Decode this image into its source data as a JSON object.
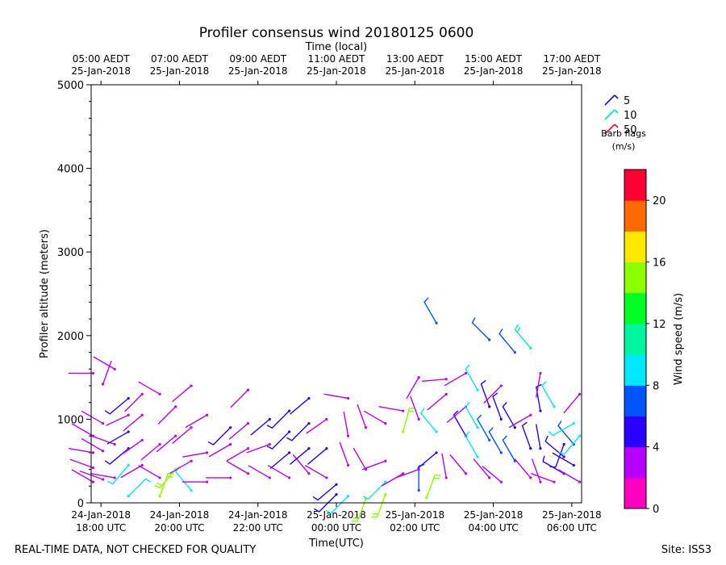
{
  "chart_data": {
    "type": "scatter",
    "subtype": "wind-barb",
    "title": "Profiler consensus wind 20180125 0600",
    "xlabel": "Time(UTC)",
    "x2label": "Time (local)",
    "ylabel": "Profiler altitude (meters)",
    "ylim": [
      0,
      5000
    ],
    "yticks": [
      0,
      1000,
      2000,
      3000,
      4000,
      5000
    ],
    "xlim_hours": [
      17.75,
      30.25
    ],
    "xticks": [
      {
        "h": 18,
        "line1": "24-Jan-2018",
        "line2": "18:00 UTC"
      },
      {
        "h": 20,
        "line1": "24-Jan-2018",
        "line2": "20:00 UTC"
      },
      {
        "h": 22,
        "line1": "24-Jan-2018",
        "line2": "22:00 UTC"
      },
      {
        "h": 24,
        "line1": "25-Jan-2018",
        "line2": "00:00 UTC"
      },
      {
        "h": 26,
        "line1": "25-Jan-2018",
        "line2": "02:00 UTC"
      },
      {
        "h": 28,
        "line1": "25-Jan-2018",
        "line2": "04:00 UTC"
      },
      {
        "h": 30,
        "line1": "25-Jan-2018",
        "line2": "06:00 UTC"
      }
    ],
    "x2ticks": [
      {
        "h": 18,
        "line1": "05:00 AEDT",
        "line2": "25-Jan-2018"
      },
      {
        "h": 20,
        "line1": "07:00 AEDT",
        "line2": "25-Jan-2018"
      },
      {
        "h": 22,
        "line1": "09:00 AEDT",
        "line2": "25-Jan-2018"
      },
      {
        "h": 24,
        "line1": "11:00 AEDT",
        "line2": "25-Jan-2018"
      },
      {
        "h": 26,
        "line1": "13:00 AEDT",
        "line2": "25-Jan-2018"
      },
      {
        "h": 28,
        "line1": "15:00 AEDT",
        "line2": "25-Jan-2018"
      },
      {
        "h": 30,
        "line1": "17:00 AEDT",
        "line2": "25-Jan-2018"
      }
    ],
    "barb_legend": {
      "entries": [
        {
          "label": "5",
          "color": "#1a00e0"
        },
        {
          "label": "10",
          "color": "#00e8a0"
        },
        {
          "label": "50",
          "color": "#ff0040"
        }
      ],
      "title": "Barb flags",
      "units": "(m/s)",
      "placement": "top-right"
    },
    "colorbar": {
      "label": "Wind speed (m/s)",
      "range": [
        0,
        22
      ],
      "ticks": [
        0,
        4,
        8,
        12,
        16,
        20
      ],
      "colors": [
        "#ff00c0",
        "#b800ff",
        "#2a00ff",
        "#0055ff",
        "#00e8ff",
        "#00f5a0",
        "#00ff22",
        "#8cff00",
        "#ffe800",
        "#ff6a00",
        "#ff0035"
      ]
    },
    "barbs": [
      {
        "t": 17.8,
        "alt": 250,
        "dir": 300,
        "spd": 2
      },
      {
        "t": 17.8,
        "alt": 420,
        "dir": 290,
        "spd": 3
      },
      {
        "t": 17.8,
        "alt": 600,
        "dir": 280,
        "spd": 2.5
      },
      {
        "t": 17.8,
        "alt": 800,
        "dir": 300,
        "spd": 3
      },
      {
        "t": 17.8,
        "alt": 1550,
        "dir": 270,
        "spd": 2
      },
      {
        "t": 18.05,
        "alt": 280,
        "dir": 290,
        "spd": 2
      },
      {
        "t": 18.05,
        "alt": 620,
        "dir": 300,
        "spd": 3
      },
      {
        "t": 18.05,
        "alt": 950,
        "dir": 300,
        "spd": 3
      },
      {
        "t": 18.05,
        "alt": 1420,
        "dir": 20,
        "spd": 2
      },
      {
        "t": 18.35,
        "alt": 300,
        "dir": 280,
        "spd": 2
      },
      {
        "t": 18.35,
        "alt": 700,
        "dir": 290,
        "spd": 3
      },
      {
        "t": 18.35,
        "alt": 1600,
        "dir": 300,
        "spd": 2
      },
      {
        "t": 18.7,
        "alt": 80,
        "dir": 45,
        "spd": 9
      },
      {
        "t": 18.7,
        "alt": 450,
        "dir": 220,
        "spd": 9
      },
      {
        "t": 18.7,
        "alt": 650,
        "dir": 230,
        "spd": 5
      },
      {
        "t": 18.7,
        "alt": 850,
        "dir": 240,
        "spd": 4
      },
      {
        "t": 18.7,
        "alt": 1050,
        "dir": 245,
        "spd": 3.5
      },
      {
        "t": 18.7,
        "alt": 1250,
        "dir": 230,
        "spd": 5
      },
      {
        "t": 19.05,
        "alt": 450,
        "dir": 240,
        "spd": 3
      },
      {
        "t": 19.05,
        "alt": 750,
        "dir": 235,
        "spd": 3
      },
      {
        "t": 19.05,
        "alt": 1050,
        "dir": 230,
        "spd": 3
      },
      {
        "t": 19.05,
        "alt": 1300,
        "dir": 225,
        "spd": 3.5
      },
      {
        "t": 19.5,
        "alt": 80,
        "dir": 20,
        "spd": 15
      },
      {
        "t": 19.5,
        "alt": 300,
        "dir": 300,
        "spd": 2
      },
      {
        "t": 19.5,
        "alt": 700,
        "dir": 230,
        "spd": 3
      },
      {
        "t": 19.5,
        "alt": 1300,
        "dir": 300,
        "spd": 2
      },
      {
        "t": 19.9,
        "alt": 400,
        "dir": 220,
        "spd": 14
      },
      {
        "t": 19.9,
        "alt": 800,
        "dir": 230,
        "spd": 3
      },
      {
        "t": 19.9,
        "alt": 1150,
        "dir": 225,
        "spd": 3
      },
      {
        "t": 20.3,
        "alt": 150,
        "dir": 320,
        "spd": 9
      },
      {
        "t": 20.3,
        "alt": 500,
        "dir": 240,
        "spd": 3
      },
      {
        "t": 20.3,
        "alt": 900,
        "dir": 230,
        "spd": 3
      },
      {
        "t": 20.3,
        "alt": 1400,
        "dir": 230,
        "spd": 2
      },
      {
        "t": 20.7,
        "alt": 250,
        "dir": 270,
        "spd": 2
      },
      {
        "t": 20.7,
        "alt": 600,
        "dir": 260,
        "spd": 2
      },
      {
        "t": 20.7,
        "alt": 1050,
        "dir": 240,
        "spd": 2
      },
      {
        "t": 21.3,
        "alt": 300,
        "dir": 270,
        "spd": 2
      },
      {
        "t": 21.3,
        "alt": 700,
        "dir": 240,
        "spd": 3
      },
      {
        "t": 21.3,
        "alt": 900,
        "dir": 225,
        "spd": 5
      },
      {
        "t": 21.75,
        "alt": 350,
        "dir": 300,
        "spd": 2
      },
      {
        "t": 21.75,
        "alt": 650,
        "dir": 240,
        "spd": 3
      },
      {
        "t": 21.75,
        "alt": 950,
        "dir": 230,
        "spd": 3
      },
      {
        "t": 21.75,
        "alt": 1350,
        "dir": 225,
        "spd": 2
      },
      {
        "t": 22.3,
        "alt": 300,
        "dir": 300,
        "spd": 2
      },
      {
        "t": 22.3,
        "alt": 700,
        "dir": 250,
        "spd": 3
      },
      {
        "t": 22.3,
        "alt": 1000,
        "dir": 230,
        "spd": 4
      },
      {
        "t": 22.8,
        "alt": 300,
        "dir": 300,
        "spd": 2
      },
      {
        "t": 22.8,
        "alt": 600,
        "dir": 230,
        "spd": 4
      },
      {
        "t": 22.8,
        "alt": 850,
        "dir": 225,
        "spd": 5
      },
      {
        "t": 22.8,
        "alt": 1100,
        "dir": 225,
        "spd": 5
      },
      {
        "t": 23.3,
        "alt": 350,
        "dir": 320,
        "spd": 2
      },
      {
        "t": 23.3,
        "alt": 650,
        "dir": 230,
        "spd": 4
      },
      {
        "t": 23.3,
        "alt": 950,
        "dir": 225,
        "spd": 5
      },
      {
        "t": 23.3,
        "alt": 1250,
        "dir": 230,
        "spd": 4
      },
      {
        "t": 23.75,
        "alt": 300,
        "dir": 300,
        "spd": 2
      },
      {
        "t": 23.75,
        "alt": 650,
        "dir": 230,
        "spd": 4
      },
      {
        "t": 23.75,
        "alt": 1000,
        "dir": 235,
        "spd": 3
      },
      {
        "t": 24.0,
        "alt": 100,
        "dir": 225,
        "spd": 5
      },
      {
        "t": 24.0,
        "alt": 220,
        "dir": 230,
        "spd": 5
      },
      {
        "t": 24.3,
        "alt": 80,
        "dir": 225,
        "spd": 9
      },
      {
        "t": 24.3,
        "alt": 450,
        "dir": 340,
        "spd": 2
      },
      {
        "t": 24.3,
        "alt": 800,
        "dir": 350,
        "spd": 2
      },
      {
        "t": 24.3,
        "alt": 1250,
        "dir": 280,
        "spd": 2
      },
      {
        "t": 24.75,
        "alt": 50,
        "dir": 200,
        "spd": 14
      },
      {
        "t": 24.75,
        "alt": 400,
        "dir": 330,
        "spd": 2
      },
      {
        "t": 24.75,
        "alt": 900,
        "dir": 340,
        "spd": 2
      },
      {
        "t": 25.25,
        "alt": 100,
        "dir": 200,
        "spd": 14
      },
      {
        "t": 25.25,
        "alt": 250,
        "dir": 225,
        "spd": 9
      },
      {
        "t": 25.25,
        "alt": 500,
        "dir": 250,
        "spd": 2
      },
      {
        "t": 25.25,
        "alt": 950,
        "dir": 300,
        "spd": 2
      },
      {
        "t": 25.7,
        "alt": 350,
        "dir": 240,
        "spd": 3
      },
      {
        "t": 25.7,
        "alt": 850,
        "dir": 15,
        "spd": 14
      },
      {
        "t": 25.7,
        "alt": 1100,
        "dir": 280,
        "spd": 2
      },
      {
        "t": 26.1,
        "alt": 150,
        "dir": 0,
        "spd": 6
      },
      {
        "t": 26.1,
        "alt": 400,
        "dir": 250,
        "spd": 2
      },
      {
        "t": 26.1,
        "alt": 1000,
        "dir": 340,
        "spd": 2
      },
      {
        "t": 26.1,
        "alt": 1500,
        "dir": 210,
        "spd": 2
      },
      {
        "t": 26.3,
        "alt": 60,
        "dir": 20,
        "spd": 14
      },
      {
        "t": 26.55,
        "alt": 600,
        "dir": 230,
        "spd": 4
      },
      {
        "t": 26.55,
        "alt": 850,
        "dir": 320,
        "spd": 9
      },
      {
        "t": 26.55,
        "alt": 2150,
        "dir": 330,
        "spd": 6
      },
      {
        "t": 26.8,
        "alt": 300,
        "dir": 350,
        "spd": 2
      },
      {
        "t": 26.8,
        "alt": 1300,
        "dir": 230,
        "spd": 3
      },
      {
        "t": 26.8,
        "alt": 1480,
        "dir": 265,
        "spd": 2
      },
      {
        "t": 27.3,
        "alt": 350,
        "dir": 320,
        "spd": 2
      },
      {
        "t": 27.3,
        "alt": 800,
        "dir": 330,
        "spd": 5
      },
      {
        "t": 27.3,
        "alt": 1150,
        "dir": 230,
        "spd": 3
      },
      {
        "t": 27.3,
        "alt": 1550,
        "dir": 240,
        "spd": 2
      },
      {
        "t": 27.6,
        "alt": 550,
        "dir": 330,
        "spd": 9
      },
      {
        "t": 27.6,
        "alt": 900,
        "dir": 330,
        "spd": 9
      },
      {
        "t": 27.6,
        "alt": 1350,
        "dir": 330,
        "spd": 9
      },
      {
        "t": 27.9,
        "alt": 300,
        "dir": 320,
        "spd": 2
      },
      {
        "t": 27.9,
        "alt": 750,
        "dir": 330,
        "spd": 6
      },
      {
        "t": 27.9,
        "alt": 1150,
        "dir": 340,
        "spd": 5
      },
      {
        "t": 27.9,
        "alt": 1950,
        "dir": 315,
        "spd": 6
      },
      {
        "t": 28.2,
        "alt": 250,
        "dir": 310,
        "spd": 2
      },
      {
        "t": 28.2,
        "alt": 600,
        "dir": 330,
        "spd": 6
      },
      {
        "t": 28.2,
        "alt": 1000,
        "dir": 340,
        "spd": 5
      },
      {
        "t": 28.2,
        "alt": 1400,
        "dir": 225,
        "spd": 3
      },
      {
        "t": 28.55,
        "alt": 500,
        "dir": 330,
        "spd": 6
      },
      {
        "t": 28.55,
        "alt": 900,
        "dir": 330,
        "spd": 5
      },
      {
        "t": 28.55,
        "alt": 1800,
        "dir": 320,
        "spd": 6
      },
      {
        "t": 28.95,
        "alt": 300,
        "dir": 320,
        "spd": 2
      },
      {
        "t": 28.95,
        "alt": 650,
        "dir": 340,
        "spd": 5
      },
      {
        "t": 28.95,
        "alt": 1050,
        "dir": 240,
        "spd": 3
      },
      {
        "t": 28.95,
        "alt": 1850,
        "dir": 320,
        "spd": 11
      },
      {
        "t": 29.2,
        "alt": 250,
        "dir": 340,
        "spd": 3
      },
      {
        "t": 29.2,
        "alt": 650,
        "dir": 350,
        "spd": 4
      },
      {
        "t": 29.2,
        "alt": 1100,
        "dir": 350,
        "spd": 5
      },
      {
        "t": 29.2,
        "alt": 1550,
        "dir": 190,
        "spd": 2
      },
      {
        "t": 29.55,
        "alt": 250,
        "dir": 290,
        "spd": 2
      },
      {
        "t": 29.55,
        "alt": 1150,
        "dir": 330,
        "spd": 9
      },
      {
        "t": 29.8,
        "alt": 350,
        "dir": 300,
        "spd": 5
      },
      {
        "t": 29.8,
        "alt": 550,
        "dir": 310,
        "spd": 5
      },
      {
        "t": 29.8,
        "alt": 700,
        "dir": 200,
        "spd": 5
      },
      {
        "t": 30.05,
        "alt": 450,
        "dir": 300,
        "spd": 4
      },
      {
        "t": 30.05,
        "alt": 700,
        "dir": 320,
        "spd": 6
      },
      {
        "t": 30.05,
        "alt": 950,
        "dir": 240,
        "spd": 9
      },
      {
        "t": 30.2,
        "alt": 250,
        "dir": 300,
        "spd": 3
      },
      {
        "t": 30.2,
        "alt": 800,
        "dir": 220,
        "spd": 9
      },
      {
        "t": 30.2,
        "alt": 1300,
        "dir": 220,
        "spd": 3
      }
    ]
  },
  "footer": {
    "left": "REAL-TIME DATA, NOT CHECKED FOR QUALITY",
    "right": "Site: ISS3"
  }
}
